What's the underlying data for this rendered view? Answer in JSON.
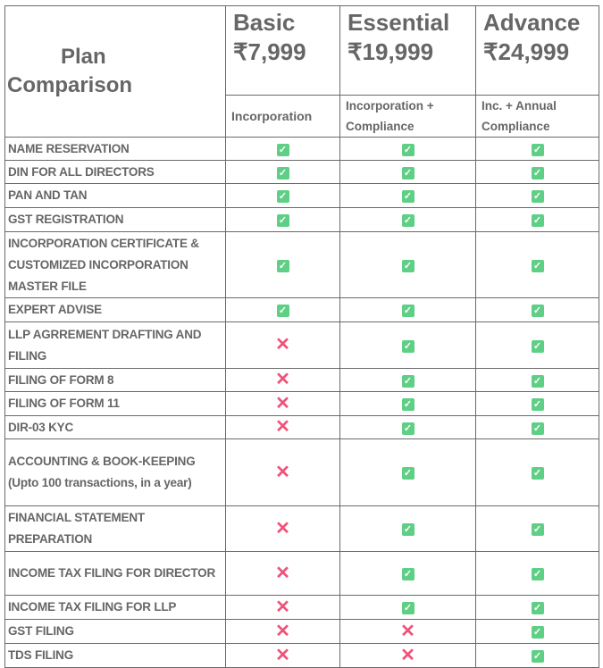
{
  "title": "Plan Comparison",
  "plans": [
    {
      "name": "Basic",
      "price": "₹7,999",
      "desc": "Incorporation"
    },
    {
      "name": "Essential",
      "price": "₹19,999",
      "desc": "Incorporation + Compliance"
    },
    {
      "name": "Advance",
      "price": "₹24,999",
      "desc": "Inc. + Annual Compliance"
    }
  ],
  "icons": {
    "yes": "check-box-icon",
    "no": "cross-icon",
    "yes_color": "#5fcf86",
    "no_color": "#f0527a"
  },
  "features": [
    {
      "name": "NAME RESERVATION",
      "v": [
        true,
        true,
        true
      ]
    },
    {
      "name": "DIN FOR ALL DIRECTORS",
      "v": [
        true,
        true,
        true
      ]
    },
    {
      "name": "PAN AND TAN",
      "v": [
        true,
        true,
        true
      ]
    },
    {
      "name": "GST REGISTRATION",
      "v": [
        true,
        true,
        true
      ]
    },
    {
      "name": "INCORPORATION CERTIFICATE & CUSTOMIZED INCORPORATION MASTER FILE",
      "v": [
        true,
        true,
        true
      ]
    },
    {
      "name": "EXPERT ADVISE",
      "v": [
        true,
        true,
        true
      ]
    },
    {
      "name": "LLP AGRREMENT DRAFTING AND FILING",
      "v": [
        false,
        true,
        true
      ]
    },
    {
      "name": "FILING OF FORM 8",
      "v": [
        false,
        true,
        true
      ]
    },
    {
      "name": "FILING OF FORM 11",
      "v": [
        false,
        true,
        true
      ]
    },
    {
      "name": "DIR-03 KYC",
      "v": [
        false,
        true,
        true
      ]
    },
    {
      "name": "ACCOUNTING & BOOK-KEEPING (Upto 100 transactions, in a year)",
      "v": [
        false,
        true,
        true
      ]
    },
    {
      "name": "FINANCIAL STATEMENT PREPARATION",
      "v": [
        false,
        true,
        true
      ]
    },
    {
      "name": "INCOME TAX FILING FOR DIRECTOR",
      "v": [
        false,
        true,
        true
      ]
    },
    {
      "name": "INCOME TAX FILING FOR LLP",
      "v": [
        false,
        true,
        true
      ]
    },
    {
      "name": "GST FILING",
      "v": [
        false,
        false,
        true
      ]
    },
    {
      "name": "TDS FILING",
      "v": [
        false,
        false,
        true
      ]
    }
  ]
}
